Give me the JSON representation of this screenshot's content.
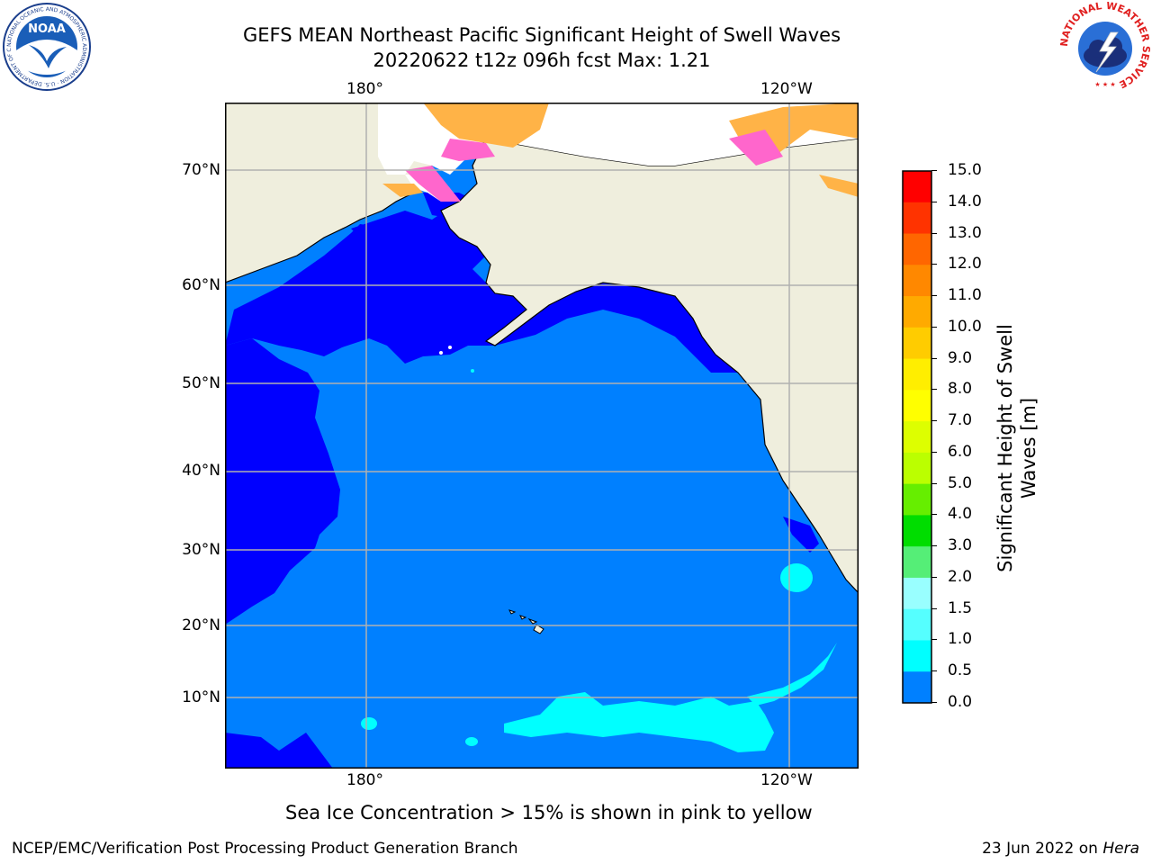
{
  "title": {
    "line1": "GEFS MEAN Northeast Pacific Significant Height of Swell Waves",
    "line2": "20220622 t12z 096h fcst   Max: 1.21"
  },
  "map": {
    "lon_ticks_top": [
      "180°",
      "120°W"
    ],
    "lon_ticks_bottom": [
      "180°",
      "120°W"
    ],
    "lat_ticks": [
      "70°N",
      "60°N",
      "50°N",
      "40°N",
      "30°N",
      "20°N",
      "10°N"
    ],
    "colors": {
      "land": "#efeedd",
      "ocean_dark": "#0000ff",
      "ocean_mid": "#0080ff",
      "ocean_light": "#00ffff",
      "ice_pink": "#ff66cc",
      "ice_orange": "#ffb347",
      "grid": "#b0b0b0"
    }
  },
  "colorbar": {
    "title_line1": "Significant Height of Swell",
    "title_line2": "Waves [m]",
    "labels": [
      "15.0",
      "14.0",
      "13.0",
      "12.0",
      "11.0",
      "10.0",
      "9.0",
      "8.0",
      "7.0",
      "6.0",
      "5.0",
      "4.0",
      "3.0",
      "2.0",
      "1.5",
      "1.0",
      "0.5",
      "0.0"
    ],
    "colors": [
      "#ff0000",
      "#ff3300",
      "#ff6600",
      "#ff8800",
      "#ffaa00",
      "#ffcc00",
      "#ffee00",
      "#ffff00",
      "#ddff00",
      "#bbff00",
      "#66ee00",
      "#00dd00",
      "#55ee77",
      "#99ffff",
      "#55ffff",
      "#00ffff",
      "#0080ff",
      "#0000ff"
    ]
  },
  "caption": "Sea Ice Concentration > 15% is shown in pink to yellow",
  "footer": {
    "left": "NCEP/EMC/Verification Post Processing Product Generation Branch",
    "right_prefix": "23 Jun 2022 on ",
    "right_host": "Hera"
  },
  "logos": {
    "noaa_text": "NOAA",
    "noaa_ring": "NATIONAL OCEANIC AND ATMOSPHERIC ADMINISTRATION · U.S. DEPARTMENT OF COMMERCE",
    "nws_ring": "NATIONAL WEATHER SERVICE"
  }
}
